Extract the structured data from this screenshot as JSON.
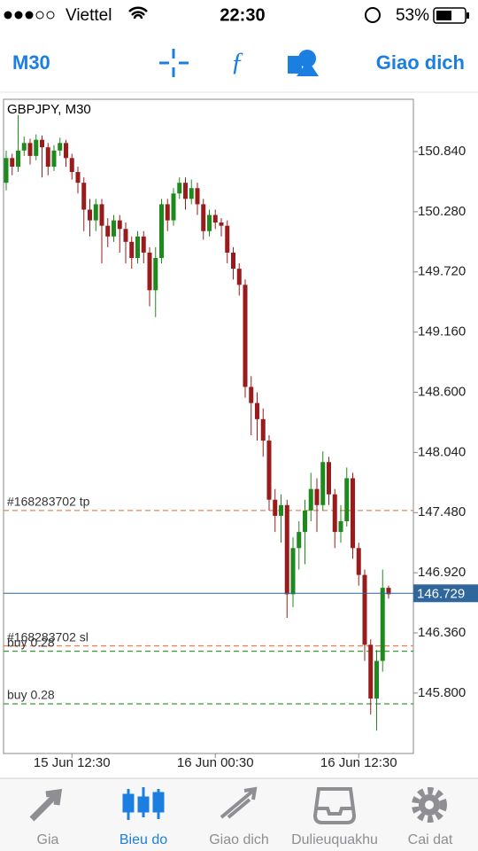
{
  "status_bar": {
    "carrier": "Viettel",
    "time": "22:30",
    "battery": "53%"
  },
  "toolbar": {
    "timeframe": "M30",
    "trade": "Giao dich"
  },
  "chart_data": {
    "type": "candlestick",
    "title": "GBPJPY, M30",
    "categories": [
      null,
      null,
      null,
      null,
      null,
      null,
      null,
      null,
      null,
      null,
      null,
      "15 Jun 12:30",
      null,
      null,
      null,
      null,
      null,
      null,
      null,
      null,
      null,
      null,
      null,
      null,
      null,
      null,
      null,
      null,
      null,
      null,
      null,
      null,
      null,
      null,
      null,
      "16 Jun 00:30",
      null,
      null,
      null,
      null,
      null,
      null,
      null,
      null,
      null,
      null,
      null,
      null,
      null,
      null,
      null,
      null,
      null,
      null,
      null,
      null,
      null,
      null,
      null,
      "16 Jun 12:30",
      null,
      null,
      null,
      null,
      null
    ],
    "ohlc": [
      [
        150.55,
        150.85,
        150.48,
        150.78
      ],
      [
        150.78,
        150.82,
        150.62,
        150.7
      ],
      [
        150.7,
        151.18,
        150.65,
        150.85
      ],
      [
        150.85,
        150.98,
        150.8,
        150.92
      ],
      [
        150.92,
        150.96,
        150.72,
        150.8
      ],
      [
        150.8,
        151.0,
        150.76,
        150.95
      ],
      [
        150.95,
        150.99,
        150.6,
        150.88
      ],
      [
        150.88,
        150.92,
        150.62,
        150.7
      ],
      [
        150.7,
        150.9,
        150.66,
        150.85
      ],
      [
        150.85,
        150.97,
        150.8,
        150.92
      ],
      [
        150.92,
        150.95,
        150.7,
        150.78
      ],
      [
        150.78,
        150.82,
        150.58,
        150.65
      ],
      [
        150.65,
        150.7,
        150.45,
        150.55
      ],
      [
        150.55,
        150.6,
        150.1,
        150.3
      ],
      [
        150.3,
        150.4,
        150.05,
        150.2
      ],
      [
        150.2,
        150.4,
        150.1,
        150.35
      ],
      [
        150.35,
        150.4,
        149.8,
        150.15
      ],
      [
        150.15,
        150.22,
        149.95,
        150.05
      ],
      [
        150.05,
        150.25,
        150.0,
        150.2
      ],
      [
        150.2,
        150.25,
        149.9,
        150.12
      ],
      [
        150.12,
        150.18,
        149.8,
        150.0
      ],
      [
        150.0,
        150.05,
        149.75,
        149.85
      ],
      [
        149.85,
        150.1,
        149.8,
        150.05
      ],
      [
        150.05,
        150.1,
        149.8,
        149.9
      ],
      [
        149.9,
        149.95,
        149.4,
        149.55
      ],
      [
        149.55,
        149.95,
        149.3,
        149.85
      ],
      [
        149.85,
        150.4,
        149.8,
        150.35
      ],
      [
        150.35,
        150.4,
        150.1,
        150.2
      ],
      [
        150.2,
        150.5,
        150.15,
        150.45
      ],
      [
        150.45,
        150.6,
        150.4,
        150.55
      ],
      [
        150.55,
        150.6,
        150.3,
        150.4
      ],
      [
        150.4,
        150.58,
        150.35,
        150.5
      ],
      [
        150.5,
        150.55,
        150.25,
        150.35
      ],
      [
        150.35,
        150.4,
        150.02,
        150.1
      ],
      [
        150.1,
        150.3,
        150.05,
        150.25
      ],
      [
        150.25,
        150.3,
        150.12,
        150.18
      ],
      [
        150.18,
        150.22,
        150.05,
        150.15
      ],
      [
        150.15,
        150.2,
        149.8,
        149.9
      ],
      [
        149.9,
        149.95,
        149.65,
        149.75
      ],
      [
        149.75,
        149.8,
        149.5,
        149.6
      ],
      [
        149.6,
        149.65,
        148.55,
        148.65
      ],
      [
        148.65,
        148.75,
        148.2,
        148.5
      ],
      [
        148.5,
        148.6,
        148.15,
        148.35
      ],
      [
        148.35,
        148.45,
        148.0,
        148.15
      ],
      [
        148.15,
        148.2,
        147.5,
        147.6
      ],
      [
        147.6,
        147.7,
        147.3,
        147.45
      ],
      [
        147.45,
        147.65,
        147.2,
        147.55
      ],
      [
        147.55,
        147.6,
        146.5,
        146.72
      ],
      [
        146.72,
        147.25,
        146.6,
        147.15
      ],
      [
        147.15,
        147.4,
        146.95,
        147.3
      ],
      [
        147.3,
        147.6,
        147.0,
        147.5
      ],
      [
        147.5,
        147.85,
        147.4,
        147.7
      ],
      [
        147.7,
        147.8,
        147.3,
        147.55
      ],
      [
        147.55,
        148.05,
        147.5,
        147.95
      ],
      [
        147.95,
        148.0,
        147.55,
        147.65
      ],
      [
        147.65,
        147.7,
        147.15,
        147.3
      ],
      [
        147.3,
        147.55,
        147.2,
        147.4
      ],
      [
        147.4,
        147.9,
        147.35,
        147.8
      ],
      [
        147.8,
        147.85,
        147.05,
        147.15
      ],
      [
        147.15,
        147.2,
        146.8,
        146.9
      ],
      [
        146.9,
        146.95,
        146.1,
        146.25
      ],
      [
        146.25,
        146.3,
        145.6,
        145.75
      ],
      [
        145.75,
        146.2,
        145.45,
        146.1
      ],
      [
        146.1,
        146.95,
        146.0,
        146.78
      ],
      [
        146.78,
        146.8,
        146.68,
        146.72
      ]
    ],
    "up_color": "#1e8a1e",
    "down_color": "#9a1b1b",
    "ylim": [
      145.238,
      151.327
    ],
    "yticks": [
      {
        "value": 150.84,
        "label": "150.840"
      },
      {
        "value": 150.28,
        "label": "150.280"
      },
      {
        "value": 149.72,
        "label": "149.720"
      },
      {
        "value": 149.16,
        "label": "149.160"
      },
      {
        "value": 148.6,
        "label": "148.600"
      },
      {
        "value": 148.04,
        "label": "148.040"
      },
      {
        "value": 147.48,
        "label": "147.480"
      },
      {
        "value": 146.92,
        "label": "146.920"
      },
      {
        "value": 146.36,
        "label": "146.360"
      },
      {
        "value": 145.8,
        "label": "145.800"
      }
    ],
    "levels": [
      {
        "label": "#168283702 tp",
        "value": 147.5,
        "color": "#e8845c"
      },
      {
        "label": "#168283702 sl",
        "value": 146.24,
        "color": "#e8845c"
      },
      {
        "label": "buy 0.28",
        "value": 146.19,
        "color": "#3a9a3a"
      },
      {
        "label": "buy 0.28",
        "value": 145.7,
        "color": "#3a9a3a"
      }
    ],
    "current_price": {
      "value": 146.729,
      "label": "146.729",
      "color": "#2f679c"
    }
  },
  "tab_bar": {
    "tabs": [
      "Gia",
      "Bieu do",
      "Giao dich",
      "Dulieuquakhu",
      "Cai dat"
    ],
    "active": 1
  }
}
